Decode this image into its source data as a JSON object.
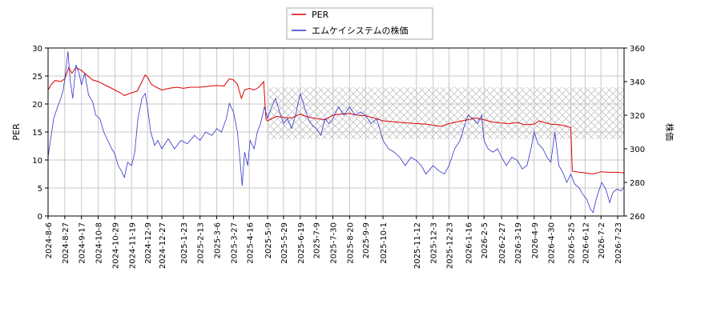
{
  "chart_data": {
    "type": "line",
    "grid": true,
    "legend_position": "top-center",
    "hatched_band": {
      "y_left_from": 13.7,
      "y_left_to": 23.0,
      "x_from": "2025-05-08",
      "x_to": "2026-07-31"
    },
    "x_tick_labels": [
      "2024-8-6",
      "2024-8-27",
      "2024-9-17",
      "2024-10-8",
      "2024-10-29",
      "2024-11-19",
      "2024-12-9",
      "2024-12-27",
      "2025-1-23",
      "2025-2-13",
      "2025-3-6",
      "2025-3-27",
      "2025-4-16",
      "2025-5-9",
      "2025-5-29",
      "2025-6-19",
      "2025-7-9",
      "2025-7-30",
      "2025-8-20",
      "2025-9-9",
      "2025-10-1",
      "2025-11-12",
      "2025-12-3",
      "2025-12-23",
      "2026-1-16",
      "2026-2-5",
      "2026-2-27",
      "2026-3-19",
      "2026-4-9",
      "2026-4-30",
      "2026-5-25",
      "2026-6-12",
      "2026-7-2",
      "2026-7-23"
    ],
    "x_tick_dates": [
      "2024-08-06",
      "2024-08-27",
      "2024-09-17",
      "2024-10-08",
      "2024-10-29",
      "2024-11-19",
      "2024-12-09",
      "2024-12-27",
      "2025-01-23",
      "2025-02-13",
      "2025-03-06",
      "2025-03-27",
      "2025-04-16",
      "2025-05-09",
      "2025-05-29",
      "2025-06-19",
      "2025-07-09",
      "2025-07-30",
      "2025-08-20",
      "2025-09-09",
      "2025-10-01",
      "2025-11-12",
      "2025-12-03",
      "2025-12-23",
      "2026-01-16",
      "2026-02-05",
      "2026-02-27",
      "2026-03-19",
      "2026-04-09",
      "2026-04-30",
      "2026-05-25",
      "2026-06-12",
      "2026-07-02",
      "2026-07-23"
    ],
    "x_range": [
      "2024-08-06",
      "2026-07-31"
    ],
    "y_left": {
      "label": "PER",
      "ylim": [
        0,
        30
      ],
      "ticks": [
        0,
        5,
        10,
        15,
        20,
        25,
        30
      ]
    },
    "y_right": {
      "label": "株価",
      "ylim": [
        260,
        360
      ],
      "ticks": [
        260,
        280,
        300,
        320,
        340,
        360
      ]
    },
    "series": [
      {
        "name": "PER",
        "axis": "left",
        "color": "#dd0000",
        "points": [
          [
            "2024-08-06",
            22.5
          ],
          [
            "2024-08-10",
            23.5
          ],
          [
            "2024-08-15",
            24.2
          ],
          [
            "2024-08-22",
            24.0
          ],
          [
            "2024-08-27",
            24.5
          ],
          [
            "2024-09-01",
            26.5
          ],
          [
            "2024-09-05",
            25.5
          ],
          [
            "2024-09-10",
            26.5
          ],
          [
            "2024-09-17",
            26.0
          ],
          [
            "2024-09-25",
            25.0
          ],
          [
            "2024-10-01",
            24.3
          ],
          [
            "2024-10-08",
            24.0
          ],
          [
            "2024-10-15",
            23.5
          ],
          [
            "2024-10-22",
            23.0
          ],
          [
            "2024-10-29",
            22.5
          ],
          [
            "2024-11-05",
            22.0
          ],
          [
            "2024-11-10",
            21.5
          ],
          [
            "2024-11-15",
            21.8
          ],
          [
            "2024-11-19",
            22.0
          ],
          [
            "2024-11-26",
            22.3
          ],
          [
            "2024-12-02",
            24.0
          ],
          [
            "2024-12-06",
            25.2
          ],
          [
            "2024-12-09",
            24.8
          ],
          [
            "2024-12-14",
            23.5
          ],
          [
            "2024-12-20",
            23.0
          ],
          [
            "2024-12-27",
            22.5
          ],
          [
            "2025-01-05",
            22.8
          ],
          [
            "2025-01-15",
            23.0
          ],
          [
            "2025-01-23",
            22.8
          ],
          [
            "2025-02-01",
            23.0
          ],
          [
            "2025-02-13",
            23.0
          ],
          [
            "2025-02-25",
            23.2
          ],
          [
            "2025-03-06",
            23.3
          ],
          [
            "2025-03-15",
            23.2
          ],
          [
            "2025-03-22",
            24.5
          ],
          [
            "2025-03-27",
            24.3
          ],
          [
            "2025-04-01",
            23.5
          ],
          [
            "2025-04-06",
            21.0
          ],
          [
            "2025-04-10",
            22.5
          ],
          [
            "2025-04-16",
            22.8
          ],
          [
            "2025-04-22",
            22.5
          ],
          [
            "2025-04-28",
            23.0
          ],
          [
            "2025-05-04",
            24.0
          ],
          [
            "2025-05-07",
            17.2
          ],
          [
            "2025-05-09",
            17.0
          ],
          [
            "2025-05-20",
            17.8
          ],
          [
            "2025-05-29",
            17.6
          ],
          [
            "2025-06-08",
            17.5
          ],
          [
            "2025-06-19",
            18.2
          ],
          [
            "2025-06-28",
            17.7
          ],
          [
            "2025-07-09",
            17.4
          ],
          [
            "2025-07-20",
            17.2
          ],
          [
            "2025-07-30",
            18.0
          ],
          [
            "2025-08-08",
            18.2
          ],
          [
            "2025-08-20",
            18.3
          ],
          [
            "2025-08-30",
            18.0
          ],
          [
            "2025-09-09",
            17.9
          ],
          [
            "2025-09-20",
            17.5
          ],
          [
            "2025-10-01",
            17.0
          ],
          [
            "2025-10-15",
            16.8
          ],
          [
            "2025-11-01",
            16.6
          ],
          [
            "2025-11-12",
            16.5
          ],
          [
            "2025-11-25",
            16.4
          ],
          [
            "2025-12-03",
            16.2
          ],
          [
            "2025-12-13",
            16.0
          ],
          [
            "2025-12-23",
            16.5
          ],
          [
            "2026-01-05",
            16.9
          ],
          [
            "2026-01-16",
            17.2
          ],
          [
            "2026-01-25",
            17.5
          ],
          [
            "2026-02-05",
            17.2
          ],
          [
            "2026-02-15",
            16.8
          ],
          [
            "2026-02-27",
            16.6
          ],
          [
            "2026-03-08",
            16.5
          ],
          [
            "2026-03-19",
            16.7
          ],
          [
            "2026-03-28",
            16.3
          ],
          [
            "2026-04-09",
            16.4
          ],
          [
            "2026-04-15",
            17.0
          ],
          [
            "2026-04-22",
            16.7
          ],
          [
            "2026-04-30",
            16.4
          ],
          [
            "2026-05-10",
            16.3
          ],
          [
            "2026-05-20",
            16.0
          ],
          [
            "2026-05-25",
            15.8
          ],
          [
            "2026-05-27",
            8.0
          ],
          [
            "2026-06-05",
            7.8
          ],
          [
            "2026-06-12",
            7.7
          ],
          [
            "2026-06-22",
            7.5
          ],
          [
            "2026-07-02",
            7.9
          ],
          [
            "2026-07-12",
            7.8
          ],
          [
            "2026-07-23",
            7.8
          ],
          [
            "2026-07-31",
            7.7
          ]
        ]
      },
      {
        "name": "エムケイシステムの株価",
        "axis": "right",
        "color": "#3333cc",
        "points": [
          [
            "2024-08-06",
            295
          ],
          [
            "2024-08-09",
            305
          ],
          [
            "2024-08-13",
            318
          ],
          [
            "2024-08-18",
            325
          ],
          [
            "2024-08-22",
            330
          ],
          [
            "2024-08-25",
            335
          ],
          [
            "2024-08-28",
            345
          ],
          [
            "2024-08-31",
            358
          ],
          [
            "2024-09-03",
            340
          ],
          [
            "2024-09-06",
            330
          ],
          [
            "2024-09-10",
            350
          ],
          [
            "2024-09-14",
            345
          ],
          [
            "2024-09-17",
            338
          ],
          [
            "2024-09-21",
            345
          ],
          [
            "2024-09-26",
            332
          ],
          [
            "2024-10-01",
            328
          ],
          [
            "2024-10-05",
            320
          ],
          [
            "2024-10-10",
            318
          ],
          [
            "2024-10-15",
            310
          ],
          [
            "2024-10-20",
            305
          ],
          [
            "2024-10-25",
            300
          ],
          [
            "2024-10-29",
            297
          ],
          [
            "2024-11-02",
            290
          ],
          [
            "2024-11-06",
            287
          ],
          [
            "2024-11-10",
            283
          ],
          [
            "2024-11-14",
            292
          ],
          [
            "2024-11-19",
            290
          ],
          [
            "2024-11-23",
            298
          ],
          [
            "2024-11-27",
            318
          ],
          [
            "2024-12-02",
            330
          ],
          [
            "2024-12-06",
            333
          ],
          [
            "2024-12-09",
            325
          ],
          [
            "2024-12-13",
            310
          ],
          [
            "2024-12-18",
            302
          ],
          [
            "2024-12-22",
            305
          ],
          [
            "2024-12-27",
            300
          ],
          [
            "2025-01-04",
            306
          ],
          [
            "2025-01-12",
            300
          ],
          [
            "2025-01-20",
            305
          ],
          [
            "2025-01-28",
            303
          ],
          [
            "2025-02-06",
            308
          ],
          [
            "2025-02-13",
            305
          ],
          [
            "2025-02-20",
            310
          ],
          [
            "2025-02-28",
            308
          ],
          [
            "2025-03-06",
            312
          ],
          [
            "2025-03-12",
            310
          ],
          [
            "2025-03-18",
            318
          ],
          [
            "2025-03-22",
            327
          ],
          [
            "2025-03-27",
            322
          ],
          [
            "2025-04-01",
            310
          ],
          [
            "2025-04-04",
            295
          ],
          [
            "2025-04-07",
            278
          ],
          [
            "2025-04-10",
            298
          ],
          [
            "2025-04-14",
            290
          ],
          [
            "2025-04-17",
            305
          ],
          [
            "2025-04-22",
            300
          ],
          [
            "2025-04-26",
            310
          ],
          [
            "2025-04-30",
            315
          ],
          [
            "2025-05-05",
            325
          ],
          [
            "2025-05-09",
            318
          ],
          [
            "2025-05-14",
            325
          ],
          [
            "2025-05-19",
            330
          ],
          [
            "2025-05-24",
            322
          ],
          [
            "2025-05-29",
            315
          ],
          [
            "2025-06-03",
            318
          ],
          [
            "2025-06-08",
            312
          ],
          [
            "2025-06-13",
            320
          ],
          [
            "2025-06-19",
            333
          ],
          [
            "2025-06-24",
            325
          ],
          [
            "2025-06-29",
            318
          ],
          [
            "2025-07-04",
            314
          ],
          [
            "2025-07-09",
            312
          ],
          [
            "2025-07-15",
            308
          ],
          [
            "2025-07-20",
            318
          ],
          [
            "2025-07-25",
            315
          ],
          [
            "2025-07-30",
            318
          ],
          [
            "2025-08-06",
            325
          ],
          [
            "2025-08-13",
            320
          ],
          [
            "2025-08-20",
            325
          ],
          [
            "2025-08-27",
            320
          ],
          [
            "2025-09-03",
            322
          ],
          [
            "2025-09-09",
            320
          ],
          [
            "2025-09-16",
            315
          ],
          [
            "2025-09-23",
            318
          ],
          [
            "2025-10-01",
            305
          ],
          [
            "2025-10-08",
            300
          ],
          [
            "2025-10-15",
            298
          ],
          [
            "2025-10-22",
            295
          ],
          [
            "2025-10-29",
            290
          ],
          [
            "2025-11-05",
            295
          ],
          [
            "2025-11-12",
            293
          ],
          [
            "2025-11-18",
            290
          ],
          [
            "2025-11-24",
            285
          ],
          [
            "2025-12-03",
            290
          ],
          [
            "2025-12-10",
            287
          ],
          [
            "2025-12-17",
            285
          ],
          [
            "2025-12-23",
            290
          ],
          [
            "2025-12-30",
            300
          ],
          [
            "2026-01-06",
            305
          ],
          [
            "2026-01-12",
            315
          ],
          [
            "2026-01-16",
            320
          ],
          [
            "2026-01-22",
            318
          ],
          [
            "2026-01-28",
            315
          ],
          [
            "2026-02-02",
            320
          ],
          [
            "2026-02-05",
            305
          ],
          [
            "2026-02-10",
            300
          ],
          [
            "2026-02-16",
            298
          ],
          [
            "2026-02-22",
            300
          ],
          [
            "2026-02-27",
            295
          ],
          [
            "2026-03-05",
            290
          ],
          [
            "2026-03-12",
            295
          ],
          [
            "2026-03-19",
            293
          ],
          [
            "2026-03-25",
            288
          ],
          [
            "2026-03-31",
            290
          ],
          [
            "2026-04-05",
            300
          ],
          [
            "2026-04-09",
            310
          ],
          [
            "2026-04-14",
            303
          ],
          [
            "2026-04-20",
            300
          ],
          [
            "2026-04-25",
            295
          ],
          [
            "2026-04-30",
            292
          ],
          [
            "2026-05-05",
            310
          ],
          [
            "2026-05-10",
            290
          ],
          [
            "2026-05-15",
            286
          ],
          [
            "2026-05-20",
            280
          ],
          [
            "2026-05-25",
            285
          ],
          [
            "2026-05-30",
            279
          ],
          [
            "2026-06-04",
            277
          ],
          [
            "2026-06-09",
            273
          ],
          [
            "2026-06-14",
            270
          ],
          [
            "2026-06-19",
            264
          ],
          [
            "2026-06-22",
            262
          ],
          [
            "2026-06-26",
            270
          ],
          [
            "2026-06-30",
            276
          ],
          [
            "2026-07-03",
            280
          ],
          [
            "2026-07-08",
            276
          ],
          [
            "2026-07-13",
            268
          ],
          [
            "2026-07-17",
            274
          ],
          [
            "2026-07-22",
            276
          ],
          [
            "2026-07-27",
            275
          ],
          [
            "2026-07-31",
            277
          ]
        ]
      }
    ]
  }
}
